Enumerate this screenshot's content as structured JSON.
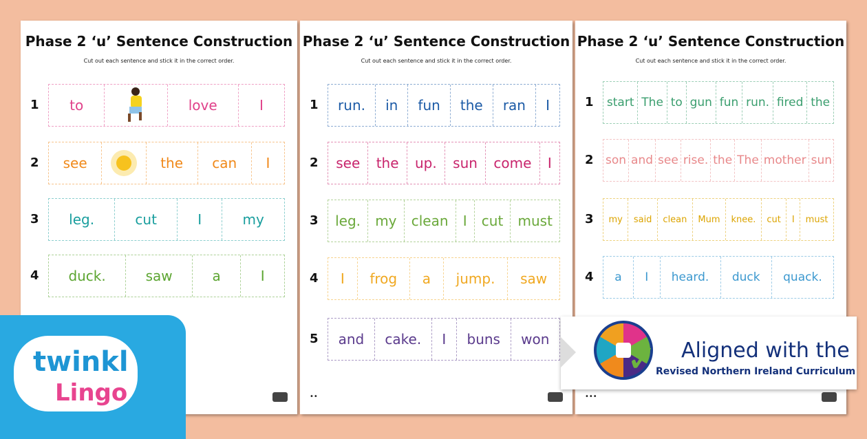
{
  "sheets": [
    {
      "title": "Phase 2 ‘u’ Sentence Construction",
      "instruction": "Cut out each sentence and stick it in the correct order.",
      "rows": [
        {
          "number": "1",
          "color": "#e0418a",
          "cells": [
            {
              "text": "to"
            },
            {
              "icon": "running-girl-icon"
            },
            {
              "text": "love"
            },
            {
              "text": "I"
            }
          ]
        },
        {
          "number": "2",
          "color": "#f0891a",
          "cells": [
            {
              "text": "see"
            },
            {
              "icon": "sun-icon"
            },
            {
              "text": "the"
            },
            {
              "text": "can"
            },
            {
              "text": "I"
            }
          ]
        },
        {
          "number": "3",
          "color": "#199e9e",
          "cells": [
            {
              "text": "leg."
            },
            {
              "text": "cut"
            },
            {
              "text": "I"
            },
            {
              "text": "my"
            }
          ]
        },
        {
          "number": "4",
          "color": "#5ca531",
          "cells": [
            {
              "text": "duck."
            },
            {
              "text": "saw"
            },
            {
              "text": "a"
            },
            {
              "text": "I"
            }
          ]
        }
      ]
    },
    {
      "title": "Phase 2 ‘u’ Sentence Construction",
      "instruction": "Cut out each sentence and stick it in the correct order.",
      "rows": [
        {
          "number": "1",
          "color": "#1b5aa6",
          "cells": [
            {
              "text": "run."
            },
            {
              "text": "in"
            },
            {
              "text": "fun"
            },
            {
              "text": "the"
            },
            {
              "text": "ran"
            },
            {
              "text": "I"
            }
          ]
        },
        {
          "number": "2",
          "color": "#c8246c",
          "cells": [
            {
              "text": "see"
            },
            {
              "text": "the"
            },
            {
              "text": "up."
            },
            {
              "text": "sun"
            },
            {
              "text": "come"
            },
            {
              "text": "I"
            }
          ]
        },
        {
          "number": "3",
          "color": "#6aa83a",
          "cells": [
            {
              "text": "leg."
            },
            {
              "text": "my"
            },
            {
              "text": "clean"
            },
            {
              "text": "I"
            },
            {
              "text": "cut"
            },
            {
              "text": "must"
            }
          ]
        },
        {
          "number": "4",
          "color": "#f0a820",
          "cells": [
            {
              "text": "I"
            },
            {
              "text": "frog"
            },
            {
              "text": "a"
            },
            {
              "text": "jump."
            },
            {
              "text": "saw"
            }
          ]
        },
        {
          "number": "5",
          "color": "#5a3a8c",
          "cells": [
            {
              "text": "and"
            },
            {
              "text": "cake."
            },
            {
              "text": "I"
            },
            {
              "text": "buns"
            },
            {
              "text": "won"
            }
          ]
        }
      ]
    },
    {
      "title": "Phase 2 ‘u’ Sentence Construction",
      "instruction": "Cut out each sentence and stick it in the correct order.",
      "rows": [
        {
          "number": "1",
          "color": "#3a9e6e",
          "cells": [
            {
              "text": "start"
            },
            {
              "text": "The"
            },
            {
              "text": "to"
            },
            {
              "text": "gun"
            },
            {
              "text": "fun"
            },
            {
              "text": "run."
            },
            {
              "text": "fired"
            },
            {
              "text": "the"
            }
          ]
        },
        {
          "number": "2",
          "color": "#e8888a",
          "cells": [
            {
              "text": "son"
            },
            {
              "text": "and"
            },
            {
              "text": "see"
            },
            {
              "text": "rise."
            },
            {
              "text": "the"
            },
            {
              "text": "The"
            },
            {
              "text": "mother"
            },
            {
              "text": "sun"
            }
          ]
        },
        {
          "number": "3",
          "color": "#dca400",
          "cells": [
            {
              "text": "my"
            },
            {
              "text": "said"
            },
            {
              "text": "clean"
            },
            {
              "text": "Mum"
            },
            {
              "text": "knee."
            },
            {
              "text": "cut"
            },
            {
              "text": "I"
            },
            {
              "text": "must"
            }
          ]
        },
        {
          "number": "4",
          "color": "#3b98cf",
          "cells": [
            {
              "text": "a"
            },
            {
              "text": "I"
            },
            {
              "text": "heard."
            },
            {
              "text": "duck"
            },
            {
              "text": "quack."
            }
          ]
        }
      ]
    }
  ],
  "footer_dots": [
    "",
    "••",
    "•••"
  ],
  "brand": {
    "line1": "twinkl",
    "line2": "Lingo",
    "color": "#29a9e1"
  },
  "badge": {
    "line1": "Aligned with the",
    "line2": "Revised Northern Ireland Curriculum",
    "icon": "curriculum-check-logo-icon"
  }
}
